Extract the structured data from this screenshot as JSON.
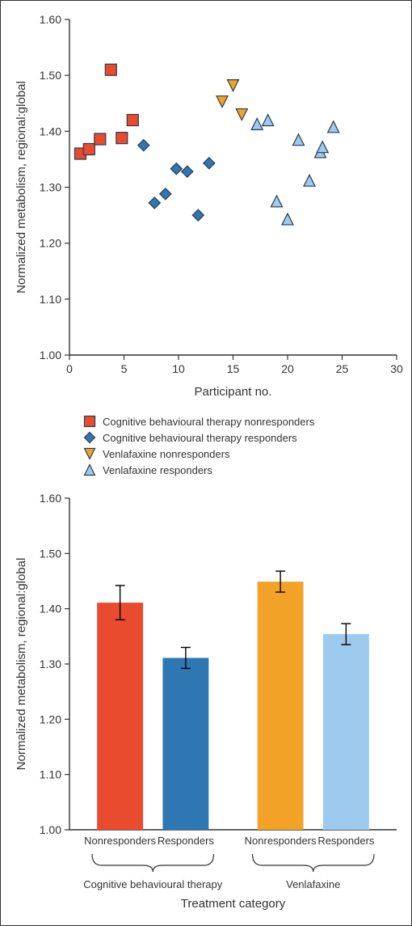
{
  "scatter": {
    "type": "scatter",
    "xlabel": "Participant no.",
    "ylabel": "Normalized metabolism, regional:global",
    "xlim": [
      0,
      30
    ],
    "ylim": [
      1.0,
      1.6
    ],
    "xticks": [
      0,
      5,
      10,
      15,
      20,
      25,
      30
    ],
    "yticks": [
      1.0,
      1.1,
      1.2,
      1.3,
      1.4,
      1.5,
      1.6
    ],
    "label_fontsize": 15,
    "tick_fontsize": 14,
    "marker_size": 14,
    "marker_stroke": "#2d3a4a",
    "marker_stroke_width": 1.2,
    "background_color": "#ffffff",
    "axis_color": "#333333",
    "series": [
      {
        "name": "Cognitive behavioural therapy nonresponders",
        "marker": "square",
        "fill": "#e94b2e",
        "points": [
          {
            "x": 1.0,
            "y": 1.36
          },
          {
            "x": 1.8,
            "y": 1.368
          },
          {
            "x": 2.8,
            "y": 1.386
          },
          {
            "x": 3.8,
            "y": 1.51
          },
          {
            "x": 4.8,
            "y": 1.388
          },
          {
            "x": 5.8,
            "y": 1.42
          }
        ]
      },
      {
        "name": "Cognitive behavioural therapy responders",
        "marker": "diamond",
        "fill": "#2e77b3",
        "points": [
          {
            "x": 6.8,
            "y": 1.375
          },
          {
            "x": 7.8,
            "y": 1.272
          },
          {
            "x": 8.8,
            "y": 1.288
          },
          {
            "x": 9.8,
            "y": 1.333
          },
          {
            "x": 10.8,
            "y": 1.328
          },
          {
            "x": 11.8,
            "y": 1.25
          },
          {
            "x": 12.8,
            "y": 1.343
          }
        ]
      },
      {
        "name": "Venlafaxine nonresponders",
        "marker": "triangle-down",
        "fill": "#f3a228",
        "points": [
          {
            "x": 14.0,
            "y": 1.453
          },
          {
            "x": 15.0,
            "y": 1.482
          },
          {
            "x": 15.8,
            "y": 1.43
          }
        ]
      },
      {
        "name": "Venlafaxine responders",
        "marker": "triangle-up",
        "fill": "#9dcaee",
        "points": [
          {
            "x": 17.2,
            "y": 1.413
          },
          {
            "x": 18.2,
            "y": 1.42
          },
          {
            "x": 19.0,
            "y": 1.275
          },
          {
            "x": 20.0,
            "y": 1.243
          },
          {
            "x": 21.0,
            "y": 1.385
          },
          {
            "x": 22.0,
            "y": 1.312
          },
          {
            "x": 23.0,
            "y": 1.363
          },
          {
            "x": 23.2,
            "y": 1.372
          },
          {
            "x": 24.2,
            "y": 1.408
          }
        ]
      }
    ]
  },
  "bar": {
    "type": "bar",
    "ylabel": "Normalized metabolism, regional:global",
    "xlabel": "Treatment category",
    "ylim": [
      1.0,
      1.6
    ],
    "yticks": [
      1.0,
      1.1,
      1.2,
      1.3,
      1.4,
      1.5,
      1.6
    ],
    "label_fontsize": 15,
    "tick_fontsize": 14,
    "bar_width": 0.7,
    "background_color": "#ffffff",
    "axis_color": "#333333",
    "error_color": "#000000",
    "error_cap_width": 12,
    "groups": [
      {
        "name": "Cognitive behavioural therapy",
        "bars": [
          {
            "label": "Nonresponders",
            "value": 1.411,
            "err": 0.031,
            "fill": "#e94b2e"
          },
          {
            "label": "Responders",
            "value": 1.311,
            "err": 0.019,
            "fill": "#2e77b3"
          }
        ]
      },
      {
        "name": "Venlafaxine",
        "bars": [
          {
            "label": "Nonresponders",
            "value": 1.449,
            "err": 0.019,
            "fill": "#f3a228"
          },
          {
            "label": "Responders",
            "value": 1.354,
            "err": 0.019,
            "fill": "#9dcaee"
          }
        ]
      }
    ]
  },
  "legend": {
    "fontsize": 13,
    "stroke": "#2d3a4a"
  }
}
